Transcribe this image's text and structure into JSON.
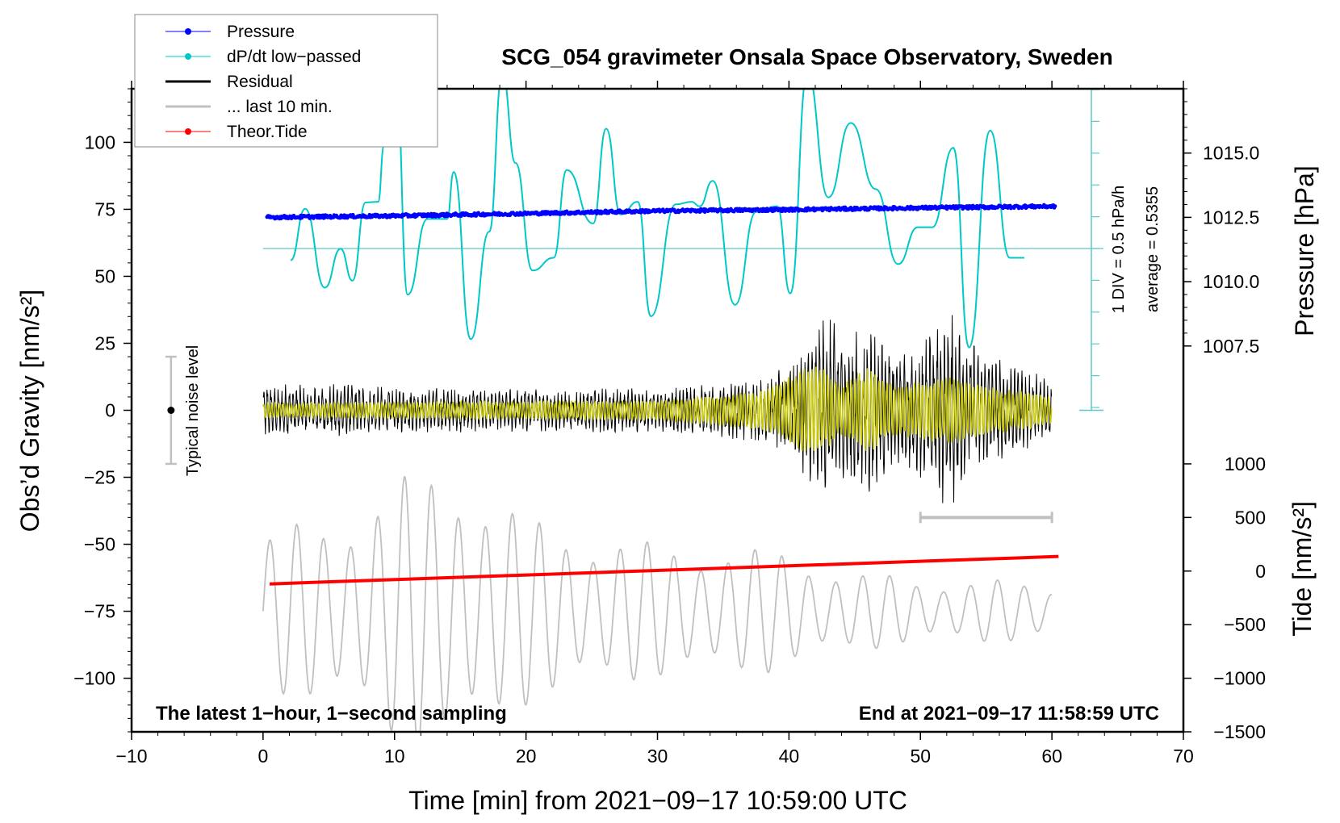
{
  "chart_data": {
    "type": "line",
    "title": "SCG_054 gravimeter Onsala Space Observatory, Sweden",
    "xlabel": "Time [min] from 2021−09−17 10:59:00 UTC",
    "ylabel_left": "Obs’d Gravity [nm/s²]",
    "ylabel_right_pressure": "Pressure [hPa]",
    "ylabel_right_tide": "Tide [nm/s²]",
    "xlim": [
      -10,
      70
    ],
    "ylim": [
      -120,
      120
    ],
    "pressure_lim": [
      992.5,
      1017.5
    ],
    "tide_lim": [
      -1500,
      4500
    ],
    "xticks": [
      "−10",
      "0",
      "10",
      "20",
      "30",
      "40",
      "50",
      "60",
      "70"
    ],
    "xtick_values": [
      -10,
      0,
      10,
      20,
      30,
      40,
      50,
      60,
      70
    ],
    "yticks": [
      "100",
      "75",
      "50",
      "25",
      "0",
      "−25",
      "−50",
      "−75",
      "−100"
    ],
    "ytick_values": [
      100,
      75,
      50,
      25,
      0,
      -25,
      -50,
      -75,
      -100
    ],
    "pressure_ticks": [
      "1015.0",
      "1012.5",
      "1010.0",
      "1007.5"
    ],
    "pressure_tick_values": [
      1015.0,
      1012.5,
      1010.0,
      1007.5
    ],
    "tide_ticks": [
      "1000",
      "500",
      "0",
      "−500",
      "−1000",
      "−1500"
    ],
    "tide_tick_values": [
      1000,
      500,
      0,
      -500,
      -1000,
      -1500
    ],
    "legend": {
      "placement": "top-left",
      "entries": [
        {
          "label": "Pressure",
          "color": "#0000ff",
          "marker": true
        },
        {
          "label": "dP/dt low−passed",
          "color": "#00c8c8",
          "marker": true
        },
        {
          "label": "Residual",
          "color": "#000000",
          "marker": false
        },
        {
          "label": "... last 10 min.",
          "color": "#c0c0c0",
          "marker": false
        },
        {
          "label": "Theor.Tide",
          "color": "#ff0000",
          "marker": true
        }
      ]
    },
    "annotations": {
      "div_label": "1 DIV = 0.5 hPa/h",
      "average_label": "average = 0.5355",
      "noise_label": "Typical noise level",
      "bottom_left": "The latest 1−hour, 1−second sampling",
      "bottom_right": "End at 2021−09−17 11:58:59 UTC"
    },
    "dpdt": {
      "unit": "hPa/h",
      "div": 0.5,
      "average": 0.5355,
      "x": [
        2.1,
        3.2,
        4.7,
        5.9,
        6.8,
        7.8,
        8.75,
        9.2,
        10.1,
        11.0,
        12.5,
        14.0,
        14.5,
        15.8,
        17.2,
        18.2,
        19.2,
        20.5,
        22.1,
        23.1,
        25.1,
        26.1,
        27.2,
        28.5,
        29.5,
        31.4,
        32.6,
        33.2,
        34.2,
        35.9,
        37.5,
        39.1,
        40.1,
        41.4,
        43.0,
        44.7,
        46.6,
        48.3,
        49.8,
        50.9,
        52.5,
        53.7,
        55.3,
        56.8,
        57.9
      ],
      "y": [
        0.35,
        1.16,
        -0.08,
        0.53,
        0.03,
        1.26,
        1.27,
        2.15,
        3.3,
        -0.19,
        1.0,
        1.0,
        1.74,
        -0.89,
        0.8,
        3.3,
        1.88,
        0.19,
        0.39,
        1.77,
        0.93,
        2.42,
        1.07,
        1.27,
        -0.53,
        1.23,
        1.27,
        1.2,
        1.6,
        -0.35,
        1.11,
        1.2,
        -0.17,
        3.3,
        1.34,
        2.51,
        1.47,
        0.29,
        0.87,
        0.87,
        2.12,
        -1.02,
        2.39,
        0.39,
        0.39
      ]
    },
    "pressure": {
      "x": [
        0,
        10,
        20,
        30,
        40,
        50,
        60
      ],
      "y": [
        1012.5,
        1012.56,
        1012.65,
        1012.75,
        1012.8,
        1012.87,
        1012.93
      ]
    },
    "theor_tide": {
      "x": [
        0,
        60
      ],
      "y": [
        -120,
        136
      ]
    },
    "residual_envelope": {
      "x": [
        0,
        5,
        10,
        20,
        30,
        35,
        38,
        40,
        42,
        43,
        44,
        45,
        46,
        48,
        50,
        52,
        53,
        55,
        58,
        60
      ],
      "amp": [
        12,
        12,
        10,
        10,
        10,
        12,
        15,
        20,
        35,
        45,
        30,
        35,
        40,
        25,
        30,
        45,
        40,
        25,
        18,
        15
      ]
    },
    "filtered_envelope": {
      "x": [
        0,
        30,
        38,
        42,
        44,
        46,
        48,
        50,
        52,
        55,
        60
      ],
      "amp": [
        3,
        4,
        8,
        20,
        10,
        18,
        10,
        12,
        14,
        10,
        6
      ]
    },
    "last10_curve": {
      "offset": -75,
      "x": [
        0,
        5,
        10,
        15,
        20,
        25,
        30,
        35,
        40,
        45,
        50,
        55,
        60
      ],
      "amp": [
        30,
        35,
        50,
        55,
        35,
        30,
        25,
        25,
        22,
        15,
        12,
        12,
        10
      ]
    },
    "noise_bar": {
      "x": -7,
      "center": 0,
      "half_range": 20
    },
    "last10_bar": {
      "x": [
        50,
        60
      ],
      "y": -40
    }
  }
}
